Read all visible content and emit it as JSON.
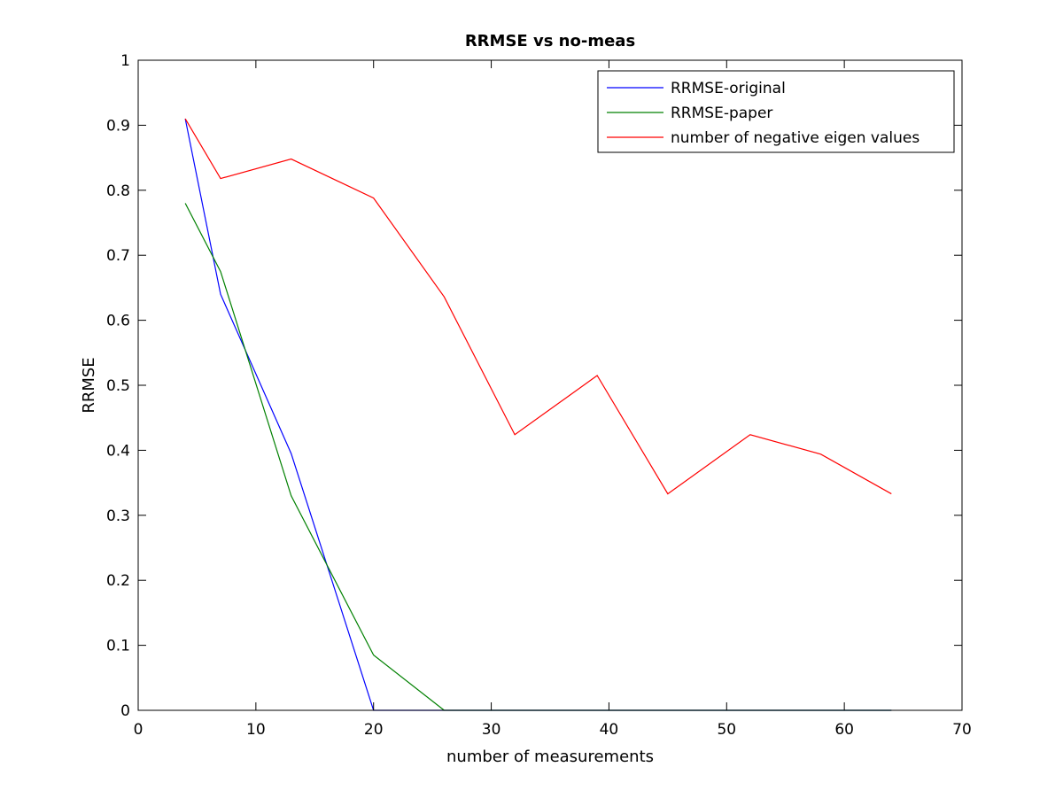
{
  "chart_data": {
    "type": "line",
    "title": "RRMSE vs no-meas",
    "xlabel": "number of measurements",
    "ylabel": "RRMSE",
    "xlim": [
      0,
      70
    ],
    "ylim": [
      0,
      1
    ],
    "xticks": [
      0,
      10,
      20,
      30,
      40,
      50,
      60,
      70
    ],
    "yticks": [
      0,
      0.1,
      0.2,
      0.3,
      0.4,
      0.5,
      0.6,
      0.7,
      0.8,
      0.9,
      1
    ],
    "xtick_labels": [
      "0",
      "10",
      "20",
      "30",
      "40",
      "50",
      "60",
      "70"
    ],
    "ytick_labels": [
      "0",
      "0.1",
      "0.2",
      "0.3",
      "0.4",
      "0.5",
      "0.6",
      "0.7",
      "0.8",
      "0.9",
      "1"
    ],
    "grid": false,
    "legend_position": "top-right",
    "series": [
      {
        "name": "RRMSE-original",
        "color": "#0000ff",
        "x": [
          4,
          7,
          13,
          20,
          26,
          32,
          39,
          45,
          52,
          58,
          64
        ],
        "y": [
          0.91,
          0.64,
          0.395,
          0.0,
          0.0,
          0.0,
          0.0,
          0.0,
          0.0,
          0.0,
          0.0
        ]
      },
      {
        "name": "RRMSE-paper",
        "color": "#008000",
        "x": [
          4,
          7,
          13,
          20,
          26,
          32,
          39,
          45,
          52,
          58,
          64
        ],
        "y": [
          0.78,
          0.675,
          0.33,
          0.085,
          0.0,
          0.0,
          0.0,
          0.0,
          0.0,
          0.0,
          0.0
        ]
      },
      {
        "name": "number of negative eigen values",
        "color": "#ff0000",
        "x": [
          4,
          7,
          13,
          20,
          26,
          32,
          39,
          45,
          52,
          58,
          64
        ],
        "y": [
          0.91,
          0.818,
          0.848,
          0.788,
          0.636,
          0.424,
          0.515,
          0.333,
          0.424,
          0.394,
          0.333
        ]
      }
    ]
  }
}
